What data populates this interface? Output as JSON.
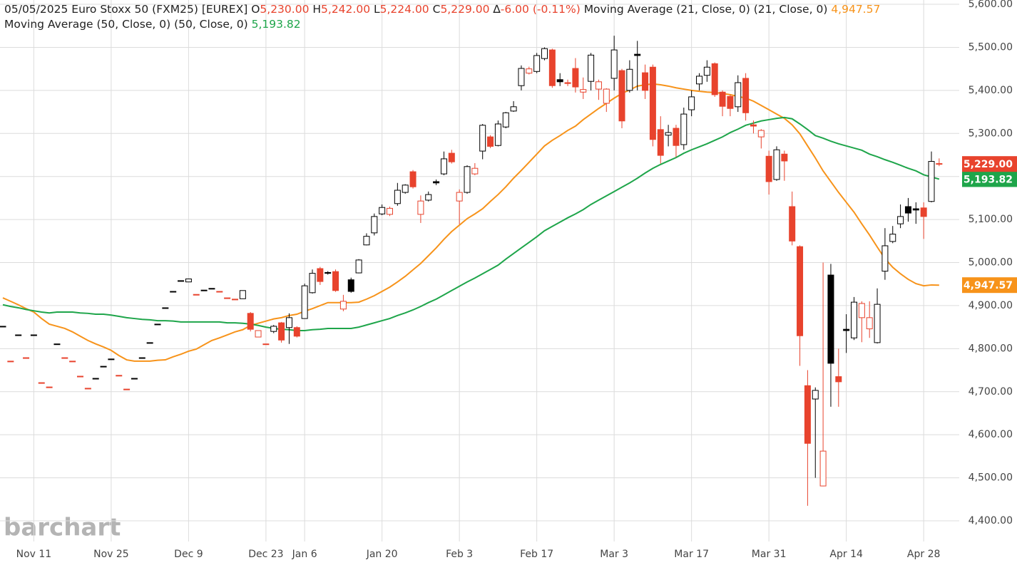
{
  "chart_data": {
    "type": "candlestick",
    "header": {
      "date": "05/05/2025",
      "symbol": "Euro Stoxx 50 (FXM25) [EUREX]",
      "open_label": "O",
      "open": "5,230.00",
      "high_label": "H",
      "high": "5,242.00",
      "low_label": "L",
      "low": "5,224.00",
      "close_label": "C",
      "close": "5,229.00",
      "change_label": "∆",
      "change": "-6.00 (-0.11%)"
    },
    "watermark": "barchart",
    "categories": [
      null,
      null,
      null,
      null,
      "Nov 11",
      null,
      null,
      null,
      null,
      null,
      null,
      null,
      null,
      null,
      "Nov 25",
      null,
      null,
      null,
      null,
      null,
      null,
      null,
      null,
      null,
      "Dec 9",
      null,
      null,
      null,
      null,
      null,
      null,
      null,
      null,
      null,
      "Dec 23",
      null,
      null,
      null,
      null,
      "Jan 6",
      null,
      null,
      null,
      null,
      null,
      null,
      null,
      null,
      null,
      "Jan 20",
      null,
      null,
      null,
      null,
      null,
      null,
      null,
      null,
      null,
      "Feb 3",
      null,
      null,
      null,
      null,
      null,
      null,
      null,
      null,
      null,
      "Feb 17",
      null,
      null,
      null,
      null,
      null,
      null,
      null,
      null,
      null,
      "Mar 3",
      null,
      null,
      null,
      null,
      null,
      null,
      null,
      null,
      null,
      "Mar 17",
      null,
      null,
      null,
      null,
      null,
      null,
      null,
      null,
      null,
      "Mar 31",
      null,
      null,
      null,
      null,
      null,
      null,
      null,
      null,
      null,
      "Apr 14",
      null,
      null,
      null,
      null,
      null,
      null,
      null,
      null,
      null,
      "Apr 28",
      null,
      null
    ],
    "open": [
      4852,
      4771,
      4832,
      4779,
      4832,
      4721,
      4711,
      4811,
      4779,
      4771,
      4736,
      4708,
      4731,
      4759,
      4776,
      4738,
      4706,
      4731,
      4779,
      4814,
      4857,
      4895,
      4933,
      4958,
      4955,
      4926,
      4936,
      4940,
      4933,
      4918,
      4915,
      4916,
      4882,
      4827,
      4811,
      4840,
      4860,
      4849,
      4849,
      4870,
      4930,
      4986,
      4977,
      4979,
      4892,
      4960,
      4976,
      5041,
      5069,
      5113,
      5112,
      5137,
      5163,
      5211,
      5112,
      5145,
      5188,
      5206,
      5254,
      5143,
      5163,
      5206,
      5259,
      5292,
      5272,
      5315,
      5352,
      5411,
      5440,
      5444,
      5474,
      5494,
      5425,
      5418,
      5451,
      5396,
      5421,
      5403,
      5370,
      5428,
      5446,
      5400,
      5484,
      5441,
      5454,
      5309,
      5296,
      5312,
      5274,
      5355,
      5415,
      5435,
      5462,
      5396,
      5386,
      5362,
      5428,
      5320,
      5292,
      5247,
      5193,
      5252,
      5130,
      5037,
      4714,
      4683,
      4481,
      4971,
      4735,
      4845,
      4825,
      4872,
      4846,
      4814,
      4980,
      5049,
      5090,
      5130,
      5125,
      5127,
      5142,
      5230
    ],
    "high": [
      4852,
      4771,
      4832,
      4779,
      4832,
      4721,
      4711,
      4811,
      4779,
      4771,
      4736,
      4708,
      4731,
      4759,
      4776,
      4738,
      4706,
      4731,
      4779,
      4814,
      4857,
      4895,
      4933,
      4958,
      4962,
      4926,
      4936,
      4940,
      4933,
      4918,
      4915,
      4935,
      4885,
      4842,
      4811,
      4855,
      4862,
      4882,
      4852,
      4951,
      4984,
      4990,
      4980,
      4984,
      4925,
      4965,
      5008,
      5068,
      5114,
      5135,
      5130,
      5185,
      5182,
      5215,
      5156,
      5165,
      5193,
      5258,
      5262,
      5170,
      5226,
      5231,
      5322,
      5296,
      5330,
      5350,
      5375,
      5458,
      5455,
      5487,
      5500,
      5497,
      5440,
      5425,
      5475,
      5430,
      5487,
      5425,
      5405,
      5527,
      5450,
      5470,
      5515,
      5460,
      5460,
      5340,
      5320,
      5320,
      5360,
      5400,
      5440,
      5470,
      5465,
      5400,
      5390,
      5435,
      5440,
      5330,
      5310,
      5260,
      5270,
      5260,
      5165,
      5040,
      4750,
      4710,
      5000,
      4997,
      4800,
      4880,
      4920,
      4910,
      4910,
      4940,
      5080,
      5085,
      5135,
      5150,
      5140,
      5140,
      5258,
      5242
    ],
    "low": [
      4852,
      4771,
      4832,
      4779,
      4832,
      4721,
      4711,
      4811,
      4779,
      4771,
      4736,
      4708,
      4731,
      4759,
      4776,
      4738,
      4706,
      4731,
      4779,
      4814,
      4857,
      4895,
      4933,
      4958,
      4955,
      4926,
      4936,
      4940,
      4933,
      4918,
      4915,
      4916,
      4840,
      4827,
      4811,
      4836,
      4814,
      4811,
      4826,
      4870,
      4928,
      4948,
      4972,
      4932,
      4887,
      4930,
      4975,
      5040,
      5063,
      5110,
      5108,
      5132,
      5160,
      5172,
      5092,
      5142,
      5180,
      5203,
      5230,
      5089,
      5160,
      5203,
      5240,
      5266,
      5270,
      5312,
      5350,
      5400,
      5437,
      5440,
      5470,
      5406,
      5410,
      5410,
      5395,
      5380,
      5400,
      5378,
      5350,
      5400,
      5312,
      5395,
      5400,
      5380,
      5270,
      5230,
      5270,
      5245,
      5262,
      5340,
      5400,
      5420,
      5385,
      5340,
      5340,
      5350,
      5330,
      5300,
      5265,
      5158,
      5190,
      5190,
      5040,
      4760,
      4435,
      4500,
      4480,
      4665,
      4665,
      4790,
      4820,
      4815,
      4825,
      4812,
      4960,
      5045,
      5080,
      5095,
      5090,
      5055,
      5140,
      5224
    ],
    "close": [
      4852,
      4771,
      4832,
      4779,
      4832,
      4721,
      4711,
      4811,
      4779,
      4771,
      4736,
      4708,
      4731,
      4759,
      4776,
      4738,
      4706,
      4731,
      4779,
      4814,
      4857,
      4895,
      4933,
      4958,
      4962,
      4926,
      4936,
      4940,
      4933,
      4918,
      4915,
      4935,
      4845,
      4842,
      4811,
      4852,
      4820,
      4872,
      4829,
      4946,
      4975,
      4956,
      4975,
      4935,
      4910,
      4933,
      5006,
      5061,
      5107,
      5128,
      5126,
      5168,
      5180,
      5176,
      5143,
      5158,
      5185,
      5241,
      5234,
      5163,
      5223,
      5219,
      5319,
      5270,
      5322,
      5348,
      5362,
      5451,
      5450,
      5481,
      5497,
      5411,
      5420,
      5416,
      5408,
      5402,
      5482,
      5420,
      5403,
      5494,
      5329,
      5449,
      5481,
      5400,
      5286,
      5249,
      5302,
      5272,
      5345,
      5385,
      5433,
      5454,
      5390,
      5363,
      5358,
      5418,
      5348,
      5317,
      5307,
      5188,
      5262,
      5236,
      5050,
      4830,
      4580,
      4703,
      4562,
      4766,
      4723,
      4842,
      4908,
      4905,
      4872,
      4903,
      5039,
      5066,
      5107,
      5115,
      5122,
      5107,
      5235,
      5229
    ],
    "close_label": "5,229.00",
    "up_color": "#000000",
    "down_color": "#e8432d",
    "overlays": [
      {
        "name": "Moving Average (21, Close, 0)",
        "params": "(21, Close, 0)",
        "color": "#f7931a",
        "value_label": "4,947.57",
        "values": [
          4918,
          4910,
          4902,
          4893,
          4885,
          4870,
          4857,
          4852,
          4847,
          4839,
          4829,
          4819,
          4811,
          4804,
          4796,
          4784,
          4774,
          4771,
          4771,
          4771,
          4773,
          4774,
          4781,
          4787,
          4794,
          4799,
          4809,
          4819,
          4825,
          4832,
          4839,
          4844,
          4854,
          4859,
          4864,
          4869,
          4872,
          4877,
          4880,
          4887,
          4893,
          4900,
          4907,
          4907,
          4907,
          4907,
          4908,
          4915,
          4923,
          4933,
          4943,
          4955,
          4968,
          4983,
          4998,
          5016,
          5034,
          5054,
          5072,
          5087,
          5102,
          5113,
          5125,
          5142,
          5158,
          5176,
          5196,
          5214,
          5233,
          5252,
          5271,
          5284,
          5295,
          5307,
          5317,
          5332,
          5345,
          5358,
          5370,
          5382,
          5393,
          5401,
          5410,
          5413,
          5415,
          5413,
          5410,
          5406,
          5403,
          5400,
          5398,
          5396,
          5395,
          5393,
          5390,
          5386,
          5382,
          5375,
          5365,
          5355,
          5345,
          5335,
          5320,
          5299,
          5271,
          5243,
          5213,
          5188,
          5163,
          5140,
          5117,
          5090,
          5064,
          5036,
          5009,
          4989,
          4974,
          4961,
          4951,
          4946,
          4948,
          4947.57
        ]
      },
      {
        "name": "Moving Average (50, Close, 0)",
        "params": "(50, Close, 0)",
        "color": "#1ea54a",
        "value_label": "5,193.82",
        "values": [
          4902,
          4898,
          4895,
          4891,
          4888,
          4885,
          4883,
          4885,
          4885,
          4885,
          4883,
          4882,
          4880,
          4880,
          4878,
          4875,
          4872,
          4870,
          4868,
          4867,
          4865,
          4865,
          4864,
          4862,
          4862,
          4862,
          4862,
          4862,
          4862,
          4860,
          4860,
          4859,
          4857,
          4854,
          4850,
          4847,
          4845,
          4844,
          4842,
          4842,
          4844,
          4845,
          4847,
          4847,
          4847,
          4847,
          4850,
          4855,
          4860,
          4865,
          4870,
          4877,
          4883,
          4890,
          4898,
          4907,
          4915,
          4925,
          4935,
          4945,
          4955,
          4964,
          4974,
          4984,
          4994,
          5008,
          5021,
          5034,
          5047,
          5060,
          5074,
          5084,
          5094,
          5104,
          5113,
          5123,
          5135,
          5145,
          5155,
          5165,
          5175,
          5185,
          5196,
          5208,
          5219,
          5228,
          5236,
          5244,
          5254,
          5262,
          5269,
          5276,
          5284,
          5292,
          5302,
          5310,
          5319,
          5324,
          5329,
          5332,
          5335,
          5337,
          5334,
          5322,
          5309,
          5295,
          5289,
          5282,
          5276,
          5271,
          5266,
          5261,
          5252,
          5246,
          5239,
          5233,
          5226,
          5219,
          5213,
          5204,
          5199,
          5193.82
        ]
      }
    ],
    "ylim": [
      4352,
      5610
    ],
    "yticks": [
      {
        "value": 4400,
        "label": "4,400.00"
      },
      {
        "value": 4500,
        "label": "4,500.00"
      },
      {
        "value": 4600,
        "label": "4,600.00"
      },
      {
        "value": 4700,
        "label": "4,700.00"
      },
      {
        "value": 4800,
        "label": "4,800.00"
      },
      {
        "value": 4900,
        "label": "4,900.00"
      },
      {
        "value": 5000,
        "label": "5,000.00"
      },
      {
        "value": 5100,
        "label": "5,100.00"
      },
      {
        "value": 5200,
        "label": "5,200.00"
      },
      {
        "value": 5300,
        "label": "5,300.00"
      },
      {
        "value": 5400,
        "label": "5,400.00"
      },
      {
        "value": 5500,
        "label": "5,500.00"
      },
      {
        "value": 5600,
        "label": "5,600.00"
      }
    ],
    "grid": true
  }
}
